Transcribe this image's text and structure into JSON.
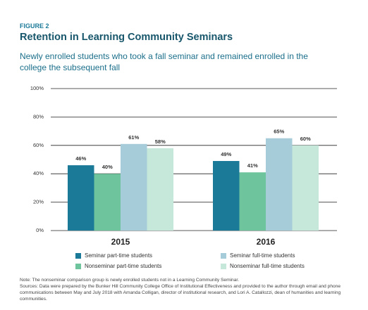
{
  "chart_data": {
    "type": "bar",
    "figure_label": "FIGURE 2",
    "title": "Retention in Learning Community Seminars",
    "subtitle": "Newly enrolled students who took a fall seminar and remained enrolled in the college the subsequent fall",
    "categories": [
      "2015",
      "2016"
    ],
    "series": [
      {
        "name": "Seminar part-time students",
        "color": "#1b7a98",
        "values": [
          46,
          49
        ],
        "value_labels": [
          "46%",
          "49%"
        ]
      },
      {
        "name": "Nonseminar part-time students",
        "color": "#6dc49d",
        "values": [
          40,
          41
        ],
        "value_labels": [
          "40%",
          "41%"
        ]
      },
      {
        "name": "Seminar full-time students",
        "color": "#a6cbd9",
        "values": [
          61,
          65
        ],
        "value_labels": [
          "61%",
          "65%"
        ]
      },
      {
        "name": "Nonseminar full-time students",
        "color": "#c6e8da",
        "values": [
          58,
          60
        ],
        "value_labels": [
          "58%",
          "60%"
        ]
      }
    ],
    "ylim": [
      0,
      100
    ],
    "yticks": [
      {
        "value": 0,
        "label": "0%"
      },
      {
        "value": 20,
        "label": "20%"
      },
      {
        "value": 40,
        "label": "40%"
      },
      {
        "value": 60,
        "label": "60%"
      },
      {
        "value": 80,
        "label": "80%"
      },
      {
        "value": 100,
        "label": "100%"
      }
    ],
    "grid": true,
    "note": "Note: The nonseminar comparison group is newly enrolled students not in a Learning Community Seminar.",
    "sources": "Sources: Data were prepared by the Bunker Hill Community College Office of Institutional Effectiveness and provided to the author through email and phone communications between May and July 2018 with Amanda Colligan, director of institutional research, and Lori A. Catallozzi, dean of humanities and learning communities."
  }
}
